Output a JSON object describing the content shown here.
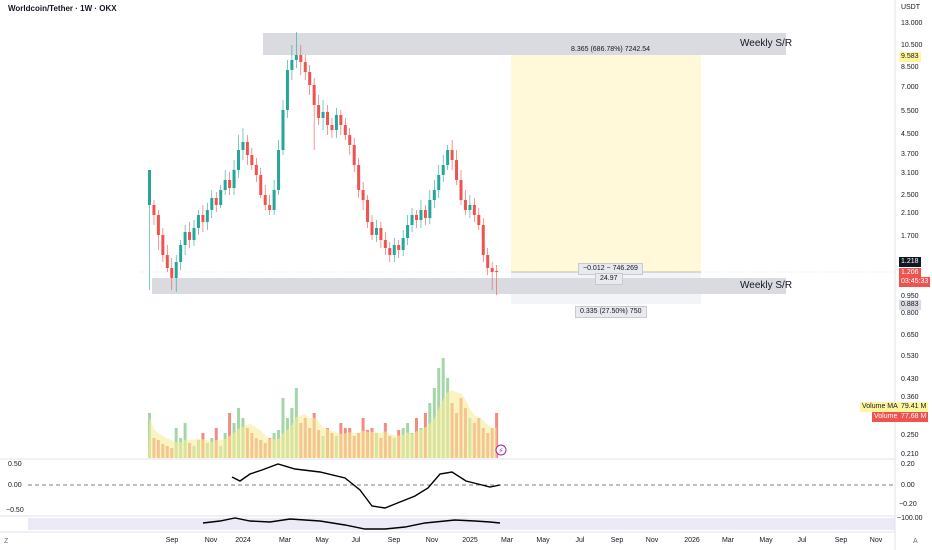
{
  "header": {
    "title": "Worldcoin/Tether · 1W · OKX",
    "currency": "USDT"
  },
  "price_axis": [
    "13.000",
    "10.500",
    "8.500",
    "7.000",
    "5.500",
    "4.500",
    "3.700",
    "3.100",
    "2.500",
    "2.100",
    "1.700",
    "0.950",
    "0.800",
    "0.650",
    "0.530",
    "0.430",
    "0.360",
    "0.250",
    "0.210"
  ],
  "price_tags": {
    "weekly_high": "9.583",
    "current": "1.218",
    "last": "1.206",
    "countdown": "03:45:33",
    "lower_zone": "0.883"
  },
  "zones": {
    "upper_label": "Weekly S/R",
    "lower_label": "Weekly S/R"
  },
  "measurements": {
    "upper": "8.365 (686.78%) 7242.54",
    "middle_line1": "−0.012 − 746.269",
    "middle_line2": "24.97",
    "lower": "0.335 (27.50%) 750"
  },
  "volume": {
    "ma_label": "Volume MA",
    "ma_value": "79.41 M",
    "label": "Volume",
    "value": "77.68 M"
  },
  "oscillator": {
    "left_labels": [
      "0.50",
      "0.00",
      "−0.50"
    ],
    "right_labels": [
      "0.20",
      "0.00",
      "−0.20",
      "−100.00"
    ]
  },
  "time_axis": [
    "Sep",
    "Nov",
    "2024",
    "Mar",
    "May",
    "Jul",
    "Sep",
    "Nov",
    "2025",
    "Mar",
    "May",
    "Jul",
    "Sep",
    "Nov",
    "2026",
    "Mar",
    "May",
    "Jul",
    "Sep",
    "Nov"
  ],
  "corners": {
    "bottom_left": "Z",
    "bottom_right": "A"
  },
  "colors": {
    "up": "#26a69a",
    "down": "#ef5350",
    "zone": "#d1d4dc",
    "projection": "#fff9d9",
    "volume_ma": "#f7e97c"
  }
}
